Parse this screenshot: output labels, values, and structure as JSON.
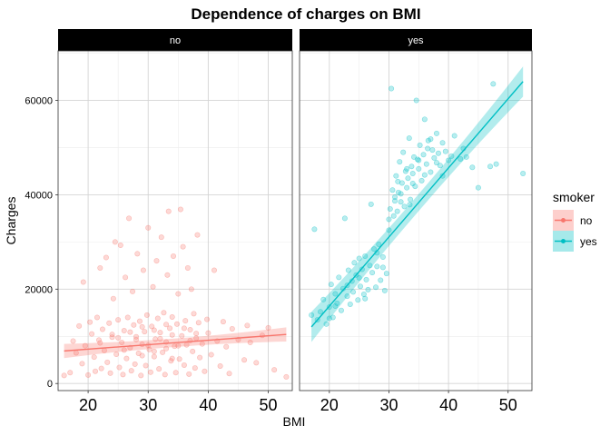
{
  "chart_data": {
    "type": "scatter",
    "title": "Dependence of charges on BMI",
    "xlabel": "BMI",
    "ylabel": "Charges",
    "xlim": [
      15,
      54
    ],
    "ylim": [
      -1500,
      70500
    ],
    "x_ticks": [
      20,
      30,
      40,
      50
    ],
    "y_ticks": [
      0,
      20000,
      40000,
      60000
    ],
    "y_tick_labels": [
      "0",
      "20000",
      "40000",
      "60000"
    ],
    "grid": true,
    "legend": {
      "title": "smoker",
      "position": "right",
      "entries": [
        "no",
        "yes"
      ]
    },
    "panels": [
      {
        "label": "no",
        "color": "#F8766D",
        "fit": {
          "x": [
            16,
            53
          ],
          "y": [
            6900,
            10400
          ],
          "band": [
            900,
            1500
          ]
        },
        "points": [
          [
            16,
            1700
          ],
          [
            17,
            2300
          ],
          [
            17.5,
            9000
          ],
          [
            18,
            6500
          ],
          [
            18.5,
            12200
          ],
          [
            19,
            4200
          ],
          [
            19.2,
            21500
          ],
          [
            19.5,
            8000
          ],
          [
            20,
            1800
          ],
          [
            20.3,
            13000
          ],
          [
            20.6,
            10500
          ],
          [
            21,
            5600
          ],
          [
            21.2,
            2600
          ],
          [
            21.5,
            14000
          ],
          [
            21.8,
            9200
          ],
          [
            22,
            24500
          ],
          [
            22.2,
            3200
          ],
          [
            22.4,
            11500
          ],
          [
            22.7,
            7000
          ],
          [
            23,
            26700
          ],
          [
            23.2,
            4500
          ],
          [
            23.5,
            12800
          ],
          [
            23.7,
            2200
          ],
          [
            24,
            9800
          ],
          [
            24.2,
            18000
          ],
          [
            24.5,
            30000
          ],
          [
            24.7,
            6200
          ],
          [
            25,
            13500
          ],
          [
            25.2,
            3400
          ],
          [
            25.4,
            29300
          ],
          [
            25.6,
            8700
          ],
          [
            25.8,
            1900
          ],
          [
            26,
            11200
          ],
          [
            26.2,
            22500
          ],
          [
            26.4,
            5300
          ],
          [
            26.6,
            14000
          ],
          [
            26.8,
            35000
          ],
          [
            27,
            7600
          ],
          [
            27.2,
            2700
          ],
          [
            27.4,
            19500
          ],
          [
            27.6,
            12400
          ],
          [
            27.8,
            4100
          ],
          [
            28,
            9900
          ],
          [
            28.2,
            27500
          ],
          [
            28.4,
            6400
          ],
          [
            28.6,
            13200
          ],
          [
            28.8,
            1700
          ],
          [
            29,
            8300
          ],
          [
            29.2,
            24000
          ],
          [
            29.4,
            11000
          ],
          [
            29.6,
            3800
          ],
          [
            29.8,
            14500
          ],
          [
            30,
            33000
          ],
          [
            30.2,
            7200
          ],
          [
            30.4,
            2400
          ],
          [
            30.6,
            12100
          ],
          [
            30.8,
            20500
          ],
          [
            31,
            5700
          ],
          [
            31.2,
            9400
          ],
          [
            31.4,
            26000
          ],
          [
            31.6,
            13800
          ],
          [
            31.8,
            3100
          ],
          [
            32,
            10800
          ],
          [
            32.2,
            31000
          ],
          [
            32.4,
            6600
          ],
          [
            32.6,
            15000
          ],
          [
            32.8,
            1900
          ],
          [
            33,
            8800
          ],
          [
            33.2,
            23000
          ],
          [
            33.4,
            36500
          ],
          [
            33.6,
            11700
          ],
          [
            33.8,
            4800
          ],
          [
            34,
            14100
          ],
          [
            34.2,
            27000
          ],
          [
            34.4,
            7900
          ],
          [
            34.6,
            2300
          ],
          [
            34.8,
            12600
          ],
          [
            35,
            19000
          ],
          [
            35.2,
            5200
          ],
          [
            35.4,
            36900
          ],
          [
            35.6,
            10100
          ],
          [
            35.8,
            29000
          ],
          [
            36,
            3900
          ],
          [
            36.2,
            13300
          ],
          [
            36.4,
            8200
          ],
          [
            36.6,
            24500
          ],
          [
            36.8,
            2000
          ],
          [
            37,
            11400
          ],
          [
            37.2,
            20000
          ],
          [
            37.4,
            6800
          ],
          [
            37.6,
            14800
          ],
          [
            37.8,
            3300
          ],
          [
            38,
            9600
          ],
          [
            38.2,
            31500
          ],
          [
            38.4,
            12900
          ],
          [
            38.6,
            5500
          ],
          [
            39,
            8400
          ],
          [
            39.4,
            2600
          ],
          [
            39.8,
            13600
          ],
          [
            40,
            10700
          ],
          [
            40.5,
            6100
          ],
          [
            41,
            24000
          ],
          [
            41.5,
            9000
          ],
          [
            42,
            3700
          ],
          [
            42.5,
            13100
          ],
          [
            43,
            7800
          ],
          [
            43.5,
            2100
          ],
          [
            44,
            11600
          ],
          [
            45,
            9300
          ],
          [
            46,
            5000
          ],
          [
            46.5,
            12300
          ],
          [
            47,
            8700
          ],
          [
            48,
            4400
          ],
          [
            49,
            10200
          ],
          [
            50,
            11800
          ],
          [
            51,
            2900
          ],
          [
            53,
            1400
          ],
          [
            22,
            8600
          ],
          [
            24,
            10400
          ],
          [
            25,
            9700
          ],
          [
            27,
            10900
          ],
          [
            28,
            9300
          ],
          [
            29,
            12000
          ],
          [
            30,
            8100
          ],
          [
            31,
            11300
          ],
          [
            32,
            9500
          ],
          [
            33,
            12500
          ],
          [
            34,
            10300
          ],
          [
            35,
            8000
          ],
          [
            36,
            11700
          ],
          [
            37,
            9100
          ],
          [
            38,
            10600
          ],
          [
            26,
            7100
          ],
          [
            31,
            6800
          ],
          [
            33,
            7400
          ],
          [
            29,
            5900
          ],
          [
            34,
            5300
          ]
        ]
      },
      {
        "label": "yes",
        "color": "#00BFC4",
        "fit": {
          "x": [
            17,
            52.5
          ],
          "y": [
            12000,
            64000
          ],
          "band": [
            1800,
            3200
          ]
        },
        "points": [
          [
            17,
            14500
          ],
          [
            17.5,
            32700
          ],
          [
            18,
            13500
          ],
          [
            18.5,
            15200
          ],
          [
            19,
            17800
          ],
          [
            19.5,
            12600
          ],
          [
            20,
            16200
          ],
          [
            20.3,
            21000
          ],
          [
            20.6,
            14000
          ],
          [
            21,
            19000
          ],
          [
            21.3,
            17000
          ],
          [
            21.6,
            22500
          ],
          [
            22,
            15500
          ],
          [
            22.3,
            20100
          ],
          [
            22.6,
            35000
          ],
          [
            23,
            18500
          ],
          [
            23.2,
            24000
          ],
          [
            23.5,
            16800
          ],
          [
            23.8,
            21700
          ],
          [
            24,
            19400
          ],
          [
            24.2,
            25600
          ],
          [
            24.5,
            23000
          ],
          [
            24.8,
            17700
          ],
          [
            25,
            26500
          ],
          [
            25.2,
            20600
          ],
          [
            25.5,
            24200
          ],
          [
            25.8,
            18900
          ],
          [
            26,
            27000
          ],
          [
            26.2,
            22000
          ],
          [
            26.5,
            19900
          ],
          [
            26.8,
            25000
          ],
          [
            27,
            38000
          ],
          [
            27.2,
            23500
          ],
          [
            27.5,
            28500
          ],
          [
            27.8,
            20400
          ],
          [
            28,
            24800
          ],
          [
            28.3,
            29500
          ],
          [
            28.6,
            21900
          ],
          [
            29,
            26800
          ],
          [
            29.3,
            19700
          ],
          [
            29.6,
            23300
          ],
          [
            30,
            32500
          ],
          [
            30.2,
            37000
          ],
          [
            30.4,
            62500
          ],
          [
            30.6,
            41000
          ],
          [
            30.8,
            35500
          ],
          [
            31,
            39500
          ],
          [
            31.2,
            44000
          ],
          [
            31.4,
            36500
          ],
          [
            31.6,
            40500
          ],
          [
            31.8,
            47000
          ],
          [
            32,
            38500
          ],
          [
            32.2,
            42500
          ],
          [
            32.4,
            49000
          ],
          [
            32.6,
            37500
          ],
          [
            32.8,
            45000
          ],
          [
            33,
            41500
          ],
          [
            33.2,
            43500
          ],
          [
            33.4,
            52000
          ],
          [
            33.6,
            39000
          ],
          [
            33.8,
            46000
          ],
          [
            34,
            44500
          ],
          [
            34.2,
            48000
          ],
          [
            34.4,
            41800
          ],
          [
            34.6,
            60000
          ],
          [
            34.8,
            47500
          ],
          [
            35,
            45500
          ],
          [
            35.2,
            50500
          ],
          [
            35.5,
            43000
          ],
          [
            35.8,
            48500
          ],
          [
            36,
            56000
          ],
          [
            36.3,
            46500
          ],
          [
            36.6,
            51500
          ],
          [
            37,
            44800
          ],
          [
            37.3,
            49500
          ],
          [
            37.6,
            47800
          ],
          [
            38,
            53000
          ],
          [
            38.3,
            48800
          ],
          [
            38.6,
            46200
          ],
          [
            39,
            51000
          ],
          [
            39.5,
            49200
          ],
          [
            40,
            47300
          ],
          [
            40.5,
            48200
          ],
          [
            41,
            52500
          ],
          [
            42,
            47600
          ],
          [
            42.5,
            49800
          ],
          [
            43,
            48000
          ],
          [
            44,
            45800
          ],
          [
            45,
            41500
          ],
          [
            47,
            46000
          ],
          [
            47.5,
            63500
          ],
          [
            48,
            46500
          ],
          [
            52.5,
            44500
          ],
          [
            20,
            13800
          ],
          [
            21,
            16400
          ],
          [
            23,
            20800
          ],
          [
            25,
            22400
          ],
          [
            26,
            18000
          ],
          [
            28,
            27700
          ],
          [
            29,
            24600
          ],
          [
            30,
            34800
          ],
          [
            31,
            38700
          ],
          [
            32,
            40200
          ],
          [
            33,
            45500
          ],
          [
            34,
            42400
          ],
          [
            35,
            47300
          ],
          [
            36,
            44200
          ],
          [
            37,
            51800
          ],
          [
            38,
            46800
          ],
          [
            39,
            44000
          ],
          [
            33.5,
            37900
          ],
          [
            31.5,
            42800
          ],
          [
            36.5,
            49800
          ]
        ]
      }
    ]
  }
}
